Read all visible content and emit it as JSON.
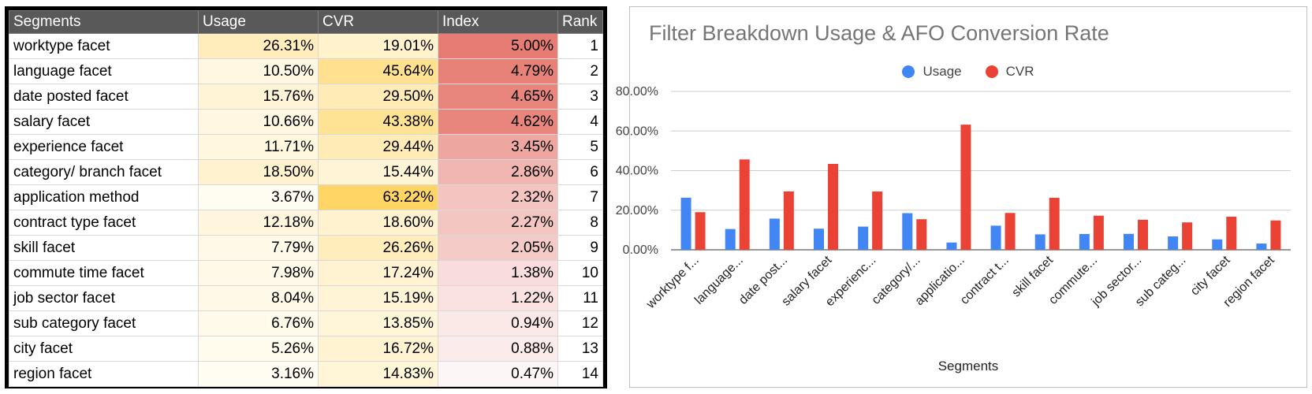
{
  "table": {
    "headers": [
      "Segments",
      "Usage",
      "CVR",
      "Index",
      "Rank"
    ],
    "rows": [
      {
        "segment": "worktype facet",
        "usage": "26.31%",
        "cvr": "19.01%",
        "index": "5.00%",
        "rank": "1"
      },
      {
        "segment": "language facet",
        "usage": "10.50%",
        "cvr": "45.64%",
        "index": "4.79%",
        "rank": "2"
      },
      {
        "segment": "date posted facet",
        "usage": "15.76%",
        "cvr": "29.50%",
        "index": "4.65%",
        "rank": "3"
      },
      {
        "segment": "salary facet",
        "usage": "10.66%",
        "cvr": "43.38%",
        "index": "4.62%",
        "rank": "4"
      },
      {
        "segment": "experience facet",
        "usage": "11.71%",
        "cvr": "29.44%",
        "index": "3.45%",
        "rank": "5"
      },
      {
        "segment": "category/ branch facet",
        "usage": "18.50%",
        "cvr": "15.44%",
        "index": "2.86%",
        "rank": "6"
      },
      {
        "segment": "application method",
        "usage": "3.67%",
        "cvr": "63.22%",
        "index": "2.32%",
        "rank": "7"
      },
      {
        "segment": "contract type facet",
        "usage": "12.18%",
        "cvr": "18.60%",
        "index": "2.27%",
        "rank": "8"
      },
      {
        "segment": "skill facet",
        "usage": "7.79%",
        "cvr": "26.26%",
        "index": "2.05%",
        "rank": "9"
      },
      {
        "segment": "commute time facet",
        "usage": "7.98%",
        "cvr": "17.24%",
        "index": "1.38%",
        "rank": "10"
      },
      {
        "segment": "job sector facet",
        "usage": "8.04%",
        "cvr": "15.19%",
        "index": "1.22%",
        "rank": "11"
      },
      {
        "segment": "sub category facet",
        "usage": "6.76%",
        "cvr": "13.85%",
        "index": "0.94%",
        "rank": "12"
      },
      {
        "segment": "city facet",
        "usage": "5.26%",
        "cvr": "16.72%",
        "index": "0.88%",
        "rank": "13"
      },
      {
        "segment": "region facet",
        "usage": "3.16%",
        "cvr": "14.83%",
        "index": "0.47%",
        "rank": "14"
      }
    ],
    "colors": {
      "header_bg": "#595959",
      "usage_cvr_low": "#fffcf2",
      "usage_cvr_high": "#ffd666",
      "index_low": "#fdf6f6",
      "index_high": "#e67c73"
    }
  },
  "chart_data": {
    "type": "bar",
    "title": "Filter Breakdown Usage & AFO Conversion Rate",
    "xlabel": "Segments",
    "ylabel": "",
    "ylim": [
      0,
      80
    ],
    "y_ticks": [
      "0.00%",
      "20.00%",
      "40.00%",
      "60.00%",
      "80.00%"
    ],
    "y_tick_values": [
      0,
      20,
      40,
      60,
      80
    ],
    "categories": [
      "worktype f...",
      "language...",
      "date post...",
      "salary facet",
      "experienc...",
      "category/...",
      "applicatio...",
      "contract t...",
      "skill facet",
      "commute...",
      "job sector...",
      "sub categ...",
      "city facet",
      "region facet"
    ],
    "series": [
      {
        "name": "Usage",
        "color": "#4285f4",
        "values": [
          26.31,
          10.5,
          15.76,
          10.66,
          11.71,
          18.5,
          3.67,
          12.18,
          7.79,
          7.98,
          8.04,
          6.76,
          5.26,
          3.16
        ]
      },
      {
        "name": "CVR",
        "color": "#ea4335",
        "values": [
          19.01,
          45.64,
          29.5,
          43.38,
          29.44,
          15.44,
          63.22,
          18.6,
          26.26,
          17.24,
          15.19,
          13.85,
          16.72,
          14.83
        ]
      }
    ],
    "legend": "top-center",
    "grid": true
  }
}
